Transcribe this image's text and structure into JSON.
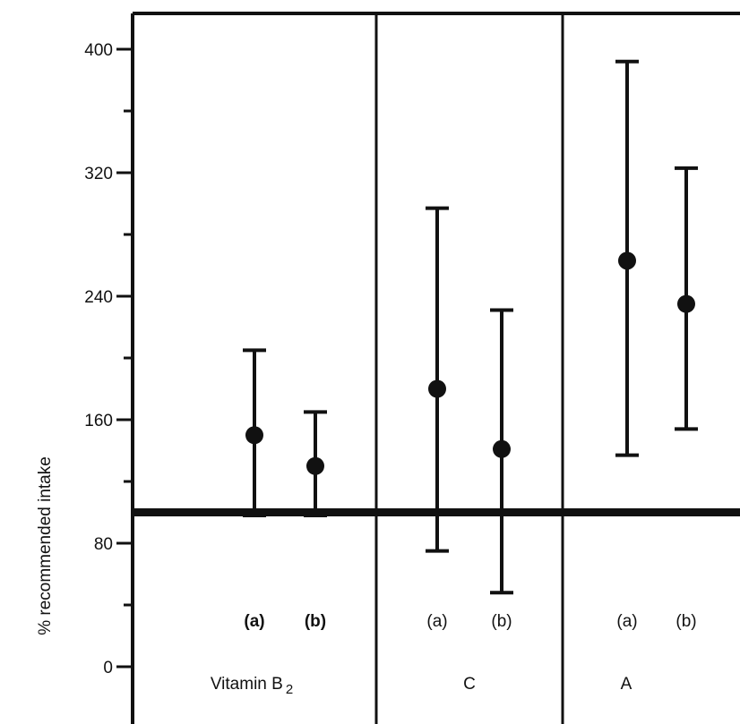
{
  "chart_data": {
    "type": "errorbar",
    "ylabel": "% recommended intake",
    "ylim": [
      0,
      420
    ],
    "yticks": [
      0,
      80,
      160,
      240,
      320,
      400
    ],
    "reference_line": 100,
    "groups": [
      {
        "label": "Vitamin B",
        "subscript": "2",
        "points": [
          {
            "category": "(a)",
            "mean": 150,
            "low": 98,
            "high": 205
          },
          {
            "category": "(b)",
            "mean": 130,
            "low": 98,
            "high": 165
          }
        ]
      },
      {
        "label": "C",
        "subscript": "",
        "points": [
          {
            "category": "(a)",
            "mean": 180,
            "low": 75,
            "high": 297
          },
          {
            "category": "(b)",
            "mean": 141,
            "low": 48,
            "high": 231
          }
        ]
      },
      {
        "label": "A",
        "subscript": "",
        "points": [
          {
            "category": "(a)",
            "mean": 263,
            "low": 137,
            "high": 392
          },
          {
            "category": "(b)",
            "mean": 235,
            "low": 154,
            "high": 323
          }
        ]
      }
    ]
  },
  "colors": {
    "ink": "#111111",
    "background": "#ffffff"
  }
}
